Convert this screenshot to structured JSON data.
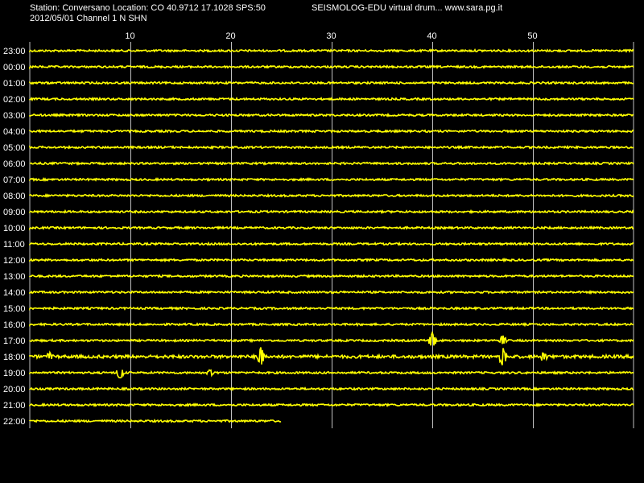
{
  "header": {
    "station_line": "Station: Conversano Location: CO 40.9712 17.1028 SPS:50",
    "program_line": "SEISMOLOG-EDU virtual drum... www.sara.pg.it",
    "date_line": "2012/05/01  Channel 1 N SHN"
  },
  "colors": {
    "background": "#000000",
    "trace": "#ffff00",
    "grid": "#c0c0c0",
    "text": "#ffffff"
  },
  "chart_data": {
    "type": "line",
    "xlim": [
      0,
      60
    ],
    "x_ticks": [
      10,
      20,
      30,
      40,
      50
    ],
    "x_tick_labels": [
      "10",
      "20",
      "30",
      "40",
      "50"
    ],
    "rows": [
      "23:00",
      "00:00",
      "01:00",
      "02:00",
      "03:00",
      "04:00",
      "05:00",
      "06:00",
      "07:00",
      "08:00",
      "09:00",
      "10:00",
      "11:00",
      "12:00",
      "13:00",
      "14:00",
      "15:00",
      "16:00",
      "17:00",
      "18:00",
      "19:00",
      "20:00",
      "21:00",
      "22:00"
    ],
    "row_end_minutes": [
      60,
      60,
      60,
      60,
      60,
      60,
      60,
      60,
      60,
      60,
      60,
      60,
      60,
      60,
      60,
      60,
      60,
      60,
      60,
      60,
      60,
      60,
      60,
      25
    ],
    "events": [
      {
        "row": "17:00",
        "minute": 40,
        "amplitude": 0.8
      },
      {
        "row": "17:00",
        "minute": 47,
        "amplitude": 0.5
      },
      {
        "row": "18:00",
        "minute": 2,
        "amplitude": 0.35
      },
      {
        "row": "18:00",
        "minute": 23,
        "amplitude": 0.9
      },
      {
        "row": "18:00",
        "minute": 47,
        "amplitude": 0.9
      },
      {
        "row": "18:00",
        "minute": 51,
        "amplitude": 0.4
      },
      {
        "row": "19:00",
        "minute": 9,
        "amplitude": 0.6
      },
      {
        "row": "19:00",
        "minute": 18,
        "amplitude": 0.3
      }
    ],
    "grid": true
  }
}
